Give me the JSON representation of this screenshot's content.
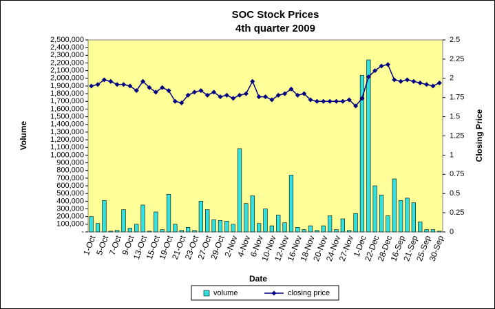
{
  "chart_data": {
    "type": "bar-line",
    "title": "SOC Stock Prices",
    "subtitle": "4th quarter 2009",
    "x_label": "Date",
    "y_label": "Volume",
    "y2_label": "Closing Price",
    "categories": [
      "1-Oct",
      null,
      "5-Oct",
      null,
      "7-Oct",
      null,
      "9-Oct",
      null,
      "13-Oct",
      null,
      "15-Oct",
      null,
      "19-Oct",
      null,
      "21-Oct",
      null,
      "23-Oct",
      null,
      "27-Oct",
      null,
      "29-Oct",
      null,
      "2-Nov",
      null,
      "4-Nov",
      null,
      "6-Nov",
      null,
      "10-Nov",
      null,
      "12-Nov",
      null,
      "16-Nov",
      null,
      "18-Nov",
      null,
      "20-Nov",
      null,
      "24-Nov",
      null,
      "27-Nov",
      null,
      "1-Dec",
      null,
      "22-Dec",
      null,
      "28-Dec",
      null,
      "16-Sep",
      null,
      "21-Sep",
      null,
      "25-Sep",
      null,
      "30-Sep"
    ],
    "series": [
      {
        "name": "volume",
        "color": "#33e0e0",
        "type": "bar",
        "values": [
          200000,
          110000,
          410000,
          10000,
          20000,
          290000,
          50000,
          100000,
          350000,
          10000,
          260000,
          30000,
          490000,
          100000,
          20000,
          60000,
          20000,
          400000,
          290000,
          160000,
          150000,
          140000,
          100000,
          1085000,
          370000,
          470000,
          110000,
          300000,
          80000,
          220000,
          120000,
          740000,
          60000,
          30000,
          80000,
          20000,
          80000,
          210000,
          30000,
          170000,
          20000,
          240000,
          2040000,
          2240000,
          600000,
          480000,
          210000,
          690000,
          410000,
          440000,
          380000,
          130000,
          30000,
          30000,
          10000
        ]
      },
      {
        "name": "closing price",
        "color": "#000080",
        "type": "line",
        "axis": "y2",
        "values": [
          1.9,
          1.92,
          1.98,
          1.96,
          1.92,
          1.92,
          1.9,
          1.84,
          1.96,
          1.88,
          1.82,
          1.88,
          1.84,
          1.7,
          1.68,
          1.78,
          1.82,
          1.84,
          1.78,
          1.82,
          1.76,
          1.78,
          1.74,
          1.78,
          1.8,
          1.96,
          1.76,
          1.76,
          1.72,
          1.78,
          1.8,
          1.86,
          1.78,
          1.8,
          1.72,
          1.7,
          1.7,
          1.7,
          1.7,
          1.7,
          1.72,
          1.64,
          1.74,
          2.02,
          2.1,
          2.16,
          2.18,
          1.98,
          1.96,
          1.98,
          1.96,
          1.94,
          1.92,
          1.9,
          1.94
        ]
      }
    ],
    "ylim": [
      0,
      2500000
    ],
    "yticks": [
      {
        "value": 0,
        "label": "-"
      },
      {
        "value": 100000,
        "label": "100,000"
      },
      {
        "value": 200000,
        "label": "200,000"
      },
      {
        "value": 300000,
        "label": "300,000"
      },
      {
        "value": 400000,
        "label": "400,000"
      },
      {
        "value": 500000,
        "label": "500,000"
      },
      {
        "value": 600000,
        "label": "600,000"
      },
      {
        "value": 700000,
        "label": "700,000"
      },
      {
        "value": 800000,
        "label": "800,000"
      },
      {
        "value": 900000,
        "label": "900,000"
      },
      {
        "value": 1000000,
        "label": "1,000,000"
      },
      {
        "value": 1100000,
        "label": "1,100,000"
      },
      {
        "value": 1200000,
        "label": "1,200,000"
      },
      {
        "value": 1300000,
        "label": "1,300,000"
      },
      {
        "value": 1400000,
        "label": "1,400,000"
      },
      {
        "value": 1500000,
        "label": "1,500,000"
      },
      {
        "value": 1600000,
        "label": "1,600,000"
      },
      {
        "value": 1700000,
        "label": "1,700,000"
      },
      {
        "value": 1800000,
        "label": "1,800,000"
      },
      {
        "value": 1900000,
        "label": "1,900,000"
      },
      {
        "value": 2000000,
        "label": "2,000,000"
      },
      {
        "value": 2100000,
        "label": "2,100,000"
      },
      {
        "value": 2200000,
        "label": "2,200,000"
      },
      {
        "value": 2300000,
        "label": "2,300,000"
      },
      {
        "value": 2400000,
        "label": "2,400,000"
      },
      {
        "value": 2500000,
        "label": "2,500,000"
      }
    ],
    "y2lim": [
      0,
      2.5
    ],
    "y2ticks": [
      0,
      0.25,
      0.5,
      0.75,
      1,
      1.25,
      1.5,
      1.75,
      2,
      2.25,
      2.5
    ],
    "grid": false,
    "legend": "bottom"
  }
}
